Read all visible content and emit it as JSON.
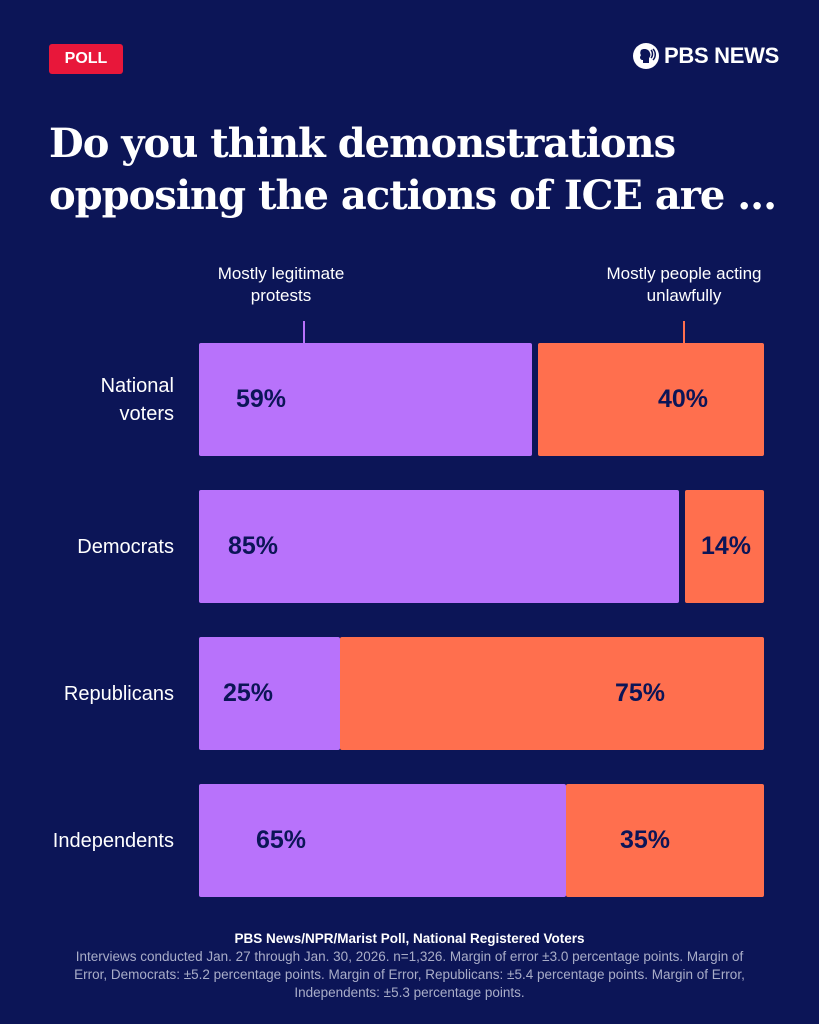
{
  "badge": "POLL",
  "logo": {
    "text": "PBS NEWS"
  },
  "title": "Do you think demonstrations opposing the actions of ICE are ...",
  "chart_data": {
    "type": "bar",
    "stacked": true,
    "orientation": "horizontal",
    "categories": [
      "National voters",
      "Democrats",
      "Republicans",
      "Independents"
    ],
    "series": [
      {
        "name": "Mostly legitimate protests",
        "values": [
          59,
          85,
          25,
          65
        ],
        "color": "#b872fb"
      },
      {
        "name": "Mostly people acting unlawfully",
        "values": [
          40,
          14,
          75,
          35
        ],
        "color": "#ff6f4e"
      }
    ],
    "value_labels": [
      [
        "59%",
        "40%"
      ],
      [
        "85%",
        "14%"
      ],
      [
        "25%",
        "75%"
      ],
      [
        "65%",
        "35%"
      ]
    ],
    "xlim": [
      0,
      100
    ]
  },
  "footer": {
    "source": "PBS News/NPR/Marist Poll, National Registered Voters",
    "note": "Interviews conducted Jan. 27 through Jan. 30, 2026. n=1,326. Margin of error ±3.0 percentage points. Margin of Error, Democrats: ±5.2 percentage points. Margin of Error, Republicans: ±5.4 percentage points. Margin of Error, Independents: ±5.3 percentage points."
  }
}
